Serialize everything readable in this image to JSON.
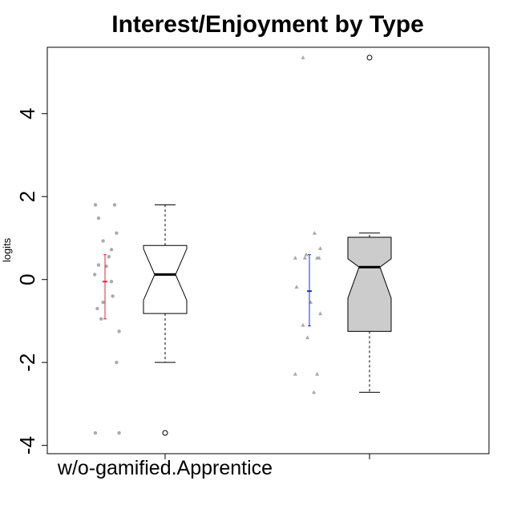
{
  "chart_data": {
    "type": "boxplot",
    "title": "Interest/Enjoyment by Type",
    "ylabel": "logits",
    "xlabel": "",
    "ylim": [
      -4.2,
      5.6
    ],
    "yticks": [
      -4,
      -2,
      0,
      2,
      4
    ],
    "ytick_labels": [
      "-4",
      "-2",
      "0",
      "2",
      "4"
    ],
    "grid": false,
    "categories": [
      "w/o-gamified.Apprentice",
      ""
    ],
    "groups": [
      {
        "label": "w/o-gamified.Apprentice",
        "box_fill": "#ffffff",
        "point_shape": "circle",
        "point_color": "#aaaaaa",
        "mean_color": "#e8233a",
        "box": {
          "q1": -0.82,
          "median": 0.12,
          "q3": 0.82,
          "whisker_low": -2.0,
          "whisker_high": 1.8,
          "notch_low": -0.5,
          "notch_high": 0.74
        },
        "outliers": [
          -3.7
        ],
        "mean_bar": {
          "mean": -0.05,
          "low": -0.95,
          "high": 0.6
        },
        "points": [
          {
            "x": -0.15,
            "y": 1.8
          },
          {
            "x": 0.15,
            "y": 1.8
          },
          {
            "x": -0.1,
            "y": 1.48
          },
          {
            "x": 0.18,
            "y": 1.12
          },
          {
            "x": -0.03,
            "y": 0.93
          },
          {
            "x": 0.1,
            "y": 0.72
          },
          {
            "x": -0.1,
            "y": 0.35
          },
          {
            "x": 0.02,
            "y": 0.32
          },
          {
            "x": 0.06,
            "y": 0.55
          },
          {
            "x": -0.16,
            "y": 0.12
          },
          {
            "x": 0.1,
            "y": -0.05
          },
          {
            "x": 0.12,
            "y": -0.4
          },
          {
            "x": -0.03,
            "y": -0.55
          },
          {
            "x": -0.12,
            "y": -0.7
          },
          {
            "x": -0.06,
            "y": -0.95
          },
          {
            "x": 0.22,
            "y": -1.25
          },
          {
            "x": 0.18,
            "y": -2.0
          },
          {
            "x": -0.15,
            "y": -3.7
          },
          {
            "x": 0.22,
            "y": -3.7
          }
        ]
      },
      {
        "label": "",
        "box_fill": "#cccccc",
        "point_shape": "triangle",
        "point_color": "#aaaaaa",
        "mean_color": "#1a2fc7",
        "box": {
          "q1": -1.25,
          "median": 0.3,
          "q3": 1.02,
          "whisker_low": -2.72,
          "whisker_high": 1.12,
          "notch_low": -0.45,
          "notch_high": 0.5
        },
        "outliers": [
          5.35
        ],
        "mean_bar": {
          "mean": -0.28,
          "low": -1.12,
          "high": 0.6
        },
        "points": [
          {
            "x": -0.1,
            "y": 5.35
          },
          {
            "x": 0.08,
            "y": 1.12
          },
          {
            "x": 0.17,
            "y": 0.75
          },
          {
            "x": -0.22,
            "y": 0.52
          },
          {
            "x": -0.07,
            "y": 0.52
          },
          {
            "x": 0.12,
            "y": 0.52
          },
          {
            "x": 0.15,
            "y": 0.52
          },
          {
            "x": -0.05,
            "y": 0.6
          },
          {
            "x": -0.2,
            "y": -0.18
          },
          {
            "x": 0.02,
            "y": -0.55
          },
          {
            "x": 0.17,
            "y": -0.82
          },
          {
            "x": -0.1,
            "y": -1.1
          },
          {
            "x": -0.03,
            "y": -1.4
          },
          {
            "x": -0.22,
            "y": -2.28
          },
          {
            "x": 0.12,
            "y": -2.28
          },
          {
            "x": 0.07,
            "y": -2.72
          }
        ]
      }
    ]
  }
}
